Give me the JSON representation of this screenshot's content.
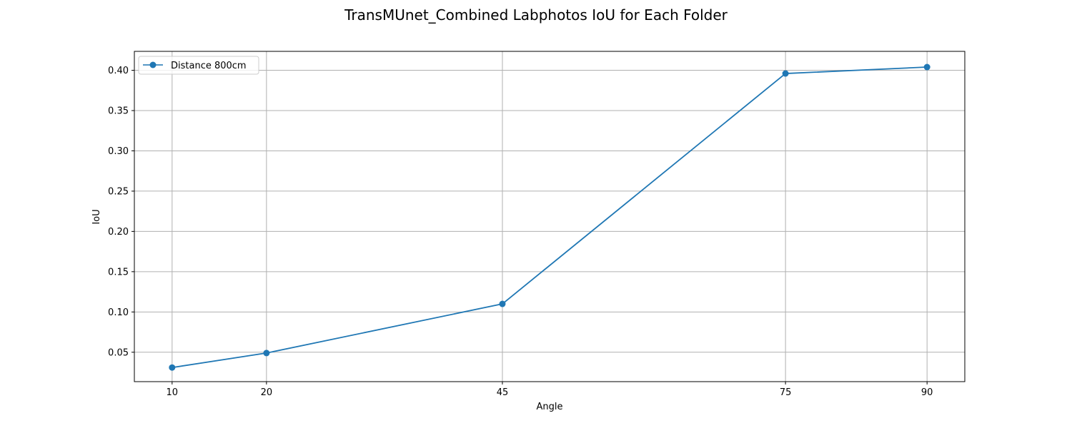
{
  "chart_data": {
    "type": "line",
    "title": "TransMUnet_Combined Labphotos IoU for Each Folder",
    "xlabel": "Angle",
    "ylabel": "IoU",
    "x": [
      10,
      20,
      45,
      75,
      90
    ],
    "xlim": [
      6,
      94
    ],
    "ylim": [
      0.0135,
      0.4235
    ],
    "xticks": [
      10,
      20,
      45,
      75,
      90
    ],
    "xtick_labels": [
      "10",
      "20",
      "45",
      "75",
      "90"
    ],
    "yticks": [
      0.05,
      0.1,
      0.15,
      0.2,
      0.25,
      0.3,
      0.35,
      0.4
    ],
    "ytick_labels": [
      "0.05",
      "0.10",
      "0.15",
      "0.20",
      "0.25",
      "0.30",
      "0.35",
      "0.40"
    ],
    "grid": true,
    "legend_position": "top-left",
    "series": [
      {
        "name": "Distance 800cm",
        "color": "#1f77b4",
        "marker": "circle",
        "values": [
          0.031,
          0.049,
          0.11,
          0.396,
          0.404
        ]
      }
    ]
  }
}
